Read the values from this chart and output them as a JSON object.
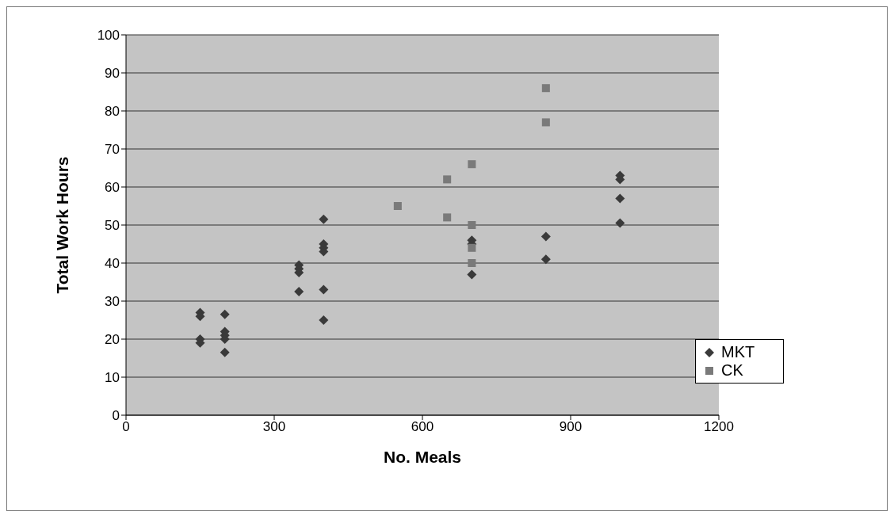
{
  "chart_data": {
    "type": "scatter",
    "xlabel": "No. Meals",
    "ylabel": "Total Work Hours",
    "xlim": [
      0,
      1200
    ],
    "xticks": [
      0,
      300,
      600,
      900,
      1200
    ],
    "ylim": [
      0,
      100
    ],
    "yticks": [
      0,
      10,
      20,
      30,
      40,
      50,
      60,
      70,
      80,
      90,
      100
    ],
    "grid": "y",
    "legend": "bottom right",
    "series": [
      {
        "name": "MKT",
        "color": "#3a3a3a",
        "marker": "diamond",
        "x": [
          150,
          150,
          150,
          150,
          200,
          200,
          200,
          200,
          200,
          350,
          350,
          350,
          350,
          400,
          400,
          400,
          400,
          400,
          400,
          700,
          700,
          700,
          850,
          850,
          1000,
          1000,
          1000,
          1000
        ],
        "values": [
          27,
          26,
          20,
          19,
          26.5,
          22,
          21,
          20,
          16.5,
          39.5,
          38.5,
          37.5,
          32.5,
          51.5,
          45,
          44,
          43,
          33,
          25,
          46,
          45,
          37,
          47,
          41,
          63,
          62,
          57,
          50.5
        ]
      },
      {
        "name": "CK",
        "color": "#7a7a7a",
        "marker": "square",
        "x": [
          550,
          650,
          650,
          700,
          700,
          700,
          700,
          850,
          850
        ],
        "values": [
          55,
          62,
          52,
          66,
          50,
          44,
          40,
          86,
          77
        ]
      }
    ]
  }
}
